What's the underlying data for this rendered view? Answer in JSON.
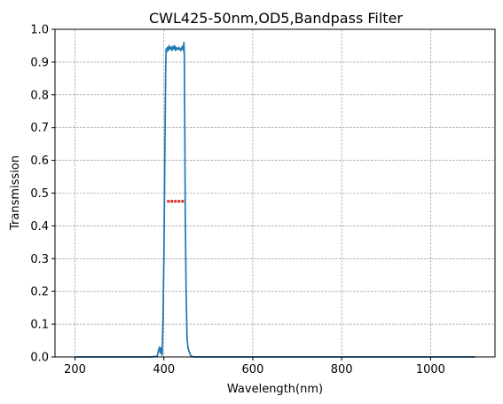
{
  "chart_data": {
    "type": "line",
    "title": "CWL425-50nm,OD5,Bandpass Filter",
    "xlabel": "Wavelength(nm)",
    "ylabel": "Transmission",
    "xlim": [
      155,
      1145
    ],
    "ylim": [
      0,
      1.0
    ],
    "xticks": [
      200,
      400,
      600,
      800,
      1000
    ],
    "yticks": [
      0.0,
      0.1,
      0.2,
      0.3,
      0.4,
      0.5,
      0.6,
      0.7,
      0.8,
      0.9,
      1.0
    ],
    "ytick_labels": [
      "0.0",
      "0.1",
      "0.2",
      "0.3",
      "0.4",
      "0.5",
      "0.6",
      "0.7",
      "0.8",
      "0.9",
      "1.0"
    ],
    "grid": true,
    "colors": {
      "series": "#1f77b4",
      "marker": "#d62728",
      "grid": "#808080"
    },
    "series": [
      {
        "x": [
          200,
          370,
          385,
          388,
          390,
          392,
          394,
          396,
          398,
          400,
          402,
          404,
          405,
          406,
          408,
          410,
          412,
          414,
          416,
          418,
          420,
          422,
          424,
          426,
          428,
          430,
          432,
          434,
          436,
          438,
          440,
          442,
          443,
          444,
          445,
          446,
          447,
          448,
          450,
          452,
          454,
          456,
          458,
          460,
          462,
          465,
          470,
          1100
        ],
        "y": [
          0.0,
          0.0,
          0.002,
          0.02,
          0.03,
          0.012,
          0.028,
          0.005,
          0.12,
          0.3,
          0.6,
          0.88,
          0.94,
          0.93,
          0.945,
          0.935,
          0.95,
          0.94,
          0.945,
          0.935,
          0.948,
          0.94,
          0.95,
          0.935,
          0.945,
          0.94,
          0.938,
          0.945,
          0.94,
          0.935,
          0.945,
          0.94,
          0.95,
          0.935,
          0.96,
          0.92,
          0.7,
          0.45,
          0.2,
          0.06,
          0.03,
          0.02,
          0.012,
          0.005,
          0.002,
          0.001,
          0.0,
          0.0
        ]
      }
    ],
    "marker_series": {
      "x": [
        410,
        418,
        426,
        434,
        442
      ],
      "y": [
        0.475,
        0.475,
        0.475,
        0.475,
        0.475
      ]
    }
  }
}
